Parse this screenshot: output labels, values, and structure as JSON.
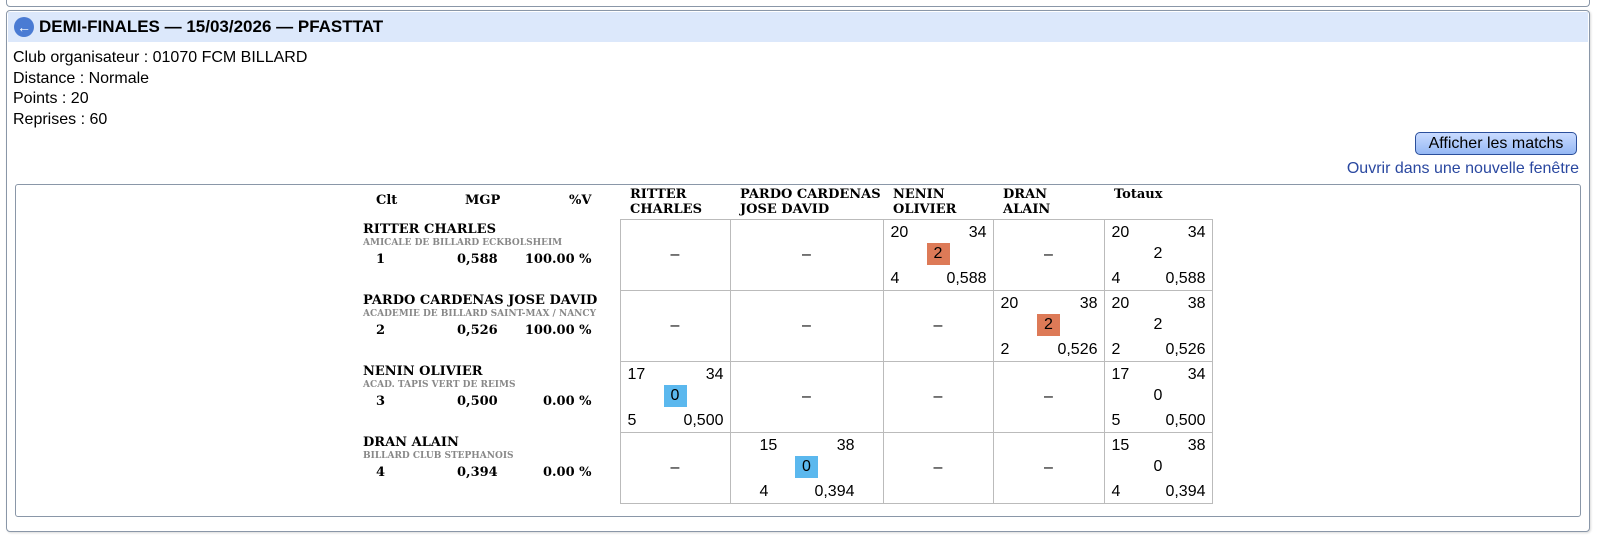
{
  "header": {
    "title": "DEMI-FINALES — 15/03/2026 — PFASTTAT"
  },
  "info": {
    "club": "Club organisateur : 01070 FCM BILLARD",
    "distance": "Distance : Normale",
    "points": "Points : 20",
    "reprises": "Reprises : 60"
  },
  "actions": {
    "show_matches": "Afficher les matchs",
    "open_window": "Ouvrir dans une nouvelle fenêtre"
  },
  "columns": {
    "clt": "Clt",
    "mgp": "MGP",
    "pv": "%V",
    "p1a": "RITTER",
    "p1b": "CHARLES",
    "p2a": "PARDO CARDENAS",
    "p2b": "JOSE DAVID",
    "p3a": "NENIN",
    "p3b": "OLIVIER",
    "p4a": "DRAN",
    "p4b": "ALAIN",
    "totals": "Totaux"
  },
  "dash": "–",
  "rows": [
    {
      "name": "RITTER CHARLES",
      "club": "AMICALE DE BILLARD ECKBOLSHEIM",
      "clt": "1",
      "mgp": "0,588",
      "pv": "100.00 %",
      "match": {
        "points": "20",
        "caram": "34",
        "result": "2",
        "reprises": "4",
        "avg": "0,588"
      },
      "total": {
        "points": "20",
        "caram": "34",
        "result": "2",
        "reprises": "4",
        "avg": "0,588"
      }
    },
    {
      "name": "PARDO CARDENAS JOSE DAVID",
      "club": "ACADEMIE DE BILLARD SAINT-MAX / NANCY",
      "clt": "2",
      "mgp": "0,526",
      "pv": "100.00 %",
      "match": {
        "points": "20",
        "caram": "38",
        "result": "2",
        "reprises": "2",
        "avg": "0,526"
      },
      "total": {
        "points": "20",
        "caram": "38",
        "result": "2",
        "reprises": "2",
        "avg": "0,526"
      }
    },
    {
      "name": "NENIN OLIVIER",
      "club": "ACAD. TAPIS VERT DE REIMS",
      "clt": "3",
      "mgp": "0,500",
      "pv": "0.00 %",
      "match": {
        "points": "17",
        "caram": "34",
        "result": "0",
        "reprises": "5",
        "avg": "0,500"
      },
      "total": {
        "points": "17",
        "caram": "34",
        "result": "0",
        "reprises": "5",
        "avg": "0,500"
      }
    },
    {
      "name": "DRAN ALAIN",
      "club": "BILLARD CLUB STEPHANOIS",
      "clt": "4",
      "mgp": "0,394",
      "pv": "0.00 %",
      "match": {
        "points": "15",
        "caram": "38",
        "result": "0",
        "reprises": "4",
        "avg": "0,394"
      },
      "total": {
        "points": "15",
        "caram": "38",
        "result": "0",
        "reprises": "4",
        "avg": "0,394"
      }
    }
  ],
  "colors": {
    "win": "#dd7a57",
    "loss": "#5bb8ee",
    "header_bg": "#dce8fb",
    "link": "#2a48a0"
  },
  "icons": {
    "back": "arrow-left-circle-icon"
  }
}
